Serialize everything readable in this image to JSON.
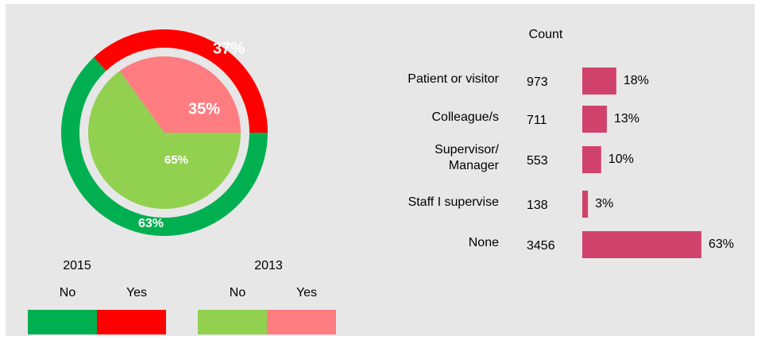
{
  "chart_data": [
    {
      "type": "pie",
      "categories": [
        "No",
        "Yes"
      ],
      "series": [
        {
          "name": "2015",
          "colors": [
            "#00b050",
            "#ff0000"
          ],
          "values": [
            63,
            37
          ],
          "value_labels": [
            "63%",
            "37%"
          ]
        },
        {
          "name": "2013",
          "colors": [
            "#92d050",
            "#ff7c80"
          ],
          "values": [
            65,
            35
          ],
          "value_labels": [
            "65%",
            "35%"
          ]
        }
      ]
    },
    {
      "type": "hbar",
      "count_title": "Count",
      "categories": [
        "Patient or visitor",
        "Colleague/s",
        "Supervisor/\nManager",
        "Staff I supervise",
        "None"
      ],
      "counts": [
        973,
        711,
        553,
        138,
        3456
      ],
      "values": [
        18,
        13,
        10,
        3,
        63
      ],
      "value_labels": [
        "18%",
        "13%",
        "10%",
        "3%",
        "63%"
      ],
      "color": "#d0426c"
    }
  ]
}
